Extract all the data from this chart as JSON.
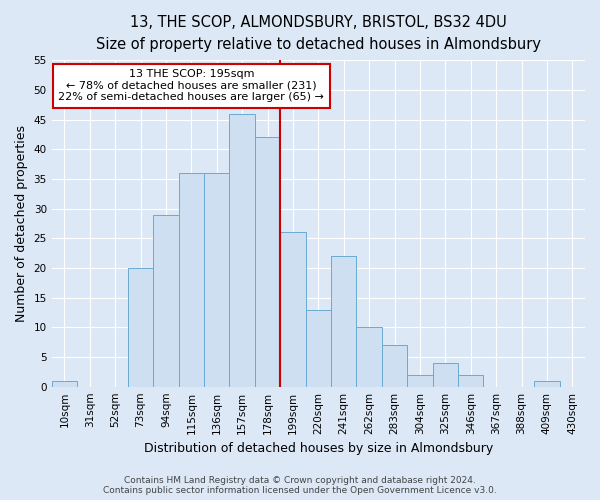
{
  "title": "13, THE SCOP, ALMONDSBURY, BRISTOL, BS32 4DU",
  "subtitle": "Size of property relative to detached houses in Almondsbury",
  "xlabel": "Distribution of detached houses by size in Almondsbury",
  "ylabel": "Number of detached properties",
  "categories": [
    "10sqm",
    "31sqm",
    "52sqm",
    "73sqm",
    "94sqm",
    "115sqm",
    "136sqm",
    "157sqm",
    "178sqm",
    "199sqm",
    "220sqm",
    "241sqm",
    "262sqm",
    "283sqm",
    "304sqm",
    "325sqm",
    "346sqm",
    "367sqm",
    "388sqm",
    "409sqm",
    "430sqm"
  ],
  "values": [
    1,
    0,
    0,
    20,
    29,
    36,
    36,
    46,
    42,
    26,
    13,
    22,
    10,
    7,
    2,
    4,
    2,
    0,
    0,
    1,
    0
  ],
  "bar_color": "#cddff0",
  "bar_edge_color": "#6aaad4",
  "background_color": "#dce8f5",
  "grid_color": "#ffffff",
  "ylim": [
    0,
    55
  ],
  "yticks": [
    0,
    5,
    10,
    15,
    20,
    25,
    30,
    35,
    40,
    45,
    50,
    55
  ],
  "annotation_text": "13 THE SCOP: 195sqm\n← 78% of detached houses are smaller (231)\n22% of semi-detached houses are larger (65) →",
  "vline_index": 9,
  "vline_color": "#cc0000",
  "annotation_box_color": "#cc0000",
  "footer_line1": "Contains HM Land Registry data © Crown copyright and database right 2024.",
  "footer_line2": "Contains public sector information licensed under the Open Government Licence v3.0.",
  "title_fontsize": 10.5,
  "subtitle_fontsize": 9.5,
  "axis_label_fontsize": 9,
  "tick_fontsize": 7.5,
  "annotation_fontsize": 8,
  "footer_fontsize": 6.5
}
